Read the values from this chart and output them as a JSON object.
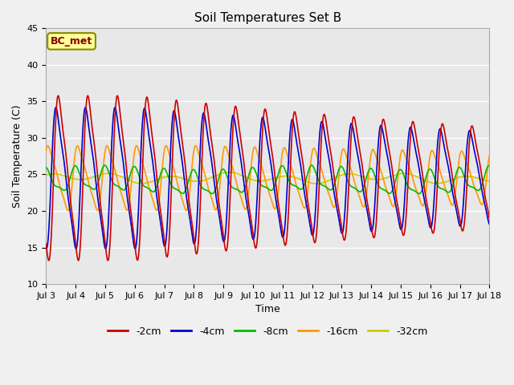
{
  "title": "Soil Temperatures Set B",
  "xlabel": "Time",
  "ylabel": "Soil Temperature (C)",
  "ylim": [
    10,
    45
  ],
  "xtick_labels": [
    "Jul 3",
    "Jul 4",
    "Jul 5",
    "Jul 6",
    "Jul 7",
    "Jul 8",
    "Jul 9",
    "Jul 10",
    "Jul 11",
    "Jul 12",
    "Jul 13",
    "Jul 14",
    "Jul 15",
    "Jul 16",
    "Jul 17",
    "Jul 18"
  ],
  "series": {
    "-2cm": {
      "color": "#cc0000",
      "lw": 1.2
    },
    "-4cm": {
      "color": "#0000cc",
      "lw": 1.2
    },
    "-8cm": {
      "color": "#00bb00",
      "lw": 1.2
    },
    "-16cm": {
      "color": "#ff9900",
      "lw": 1.2
    },
    "-32cm": {
      "color": "#cccc00",
      "lw": 1.2
    }
  },
  "annotation_text": "BC_met",
  "annotation_color": "#880000",
  "annotation_bg": "#ffff99",
  "annotation_border": "#888800",
  "fig_bg": "#f0f0f0",
  "plot_bg": "#e8e8e8",
  "title_fontsize": 11,
  "label_fontsize": 9,
  "tick_fontsize": 8,
  "legend_fontsize": 9
}
